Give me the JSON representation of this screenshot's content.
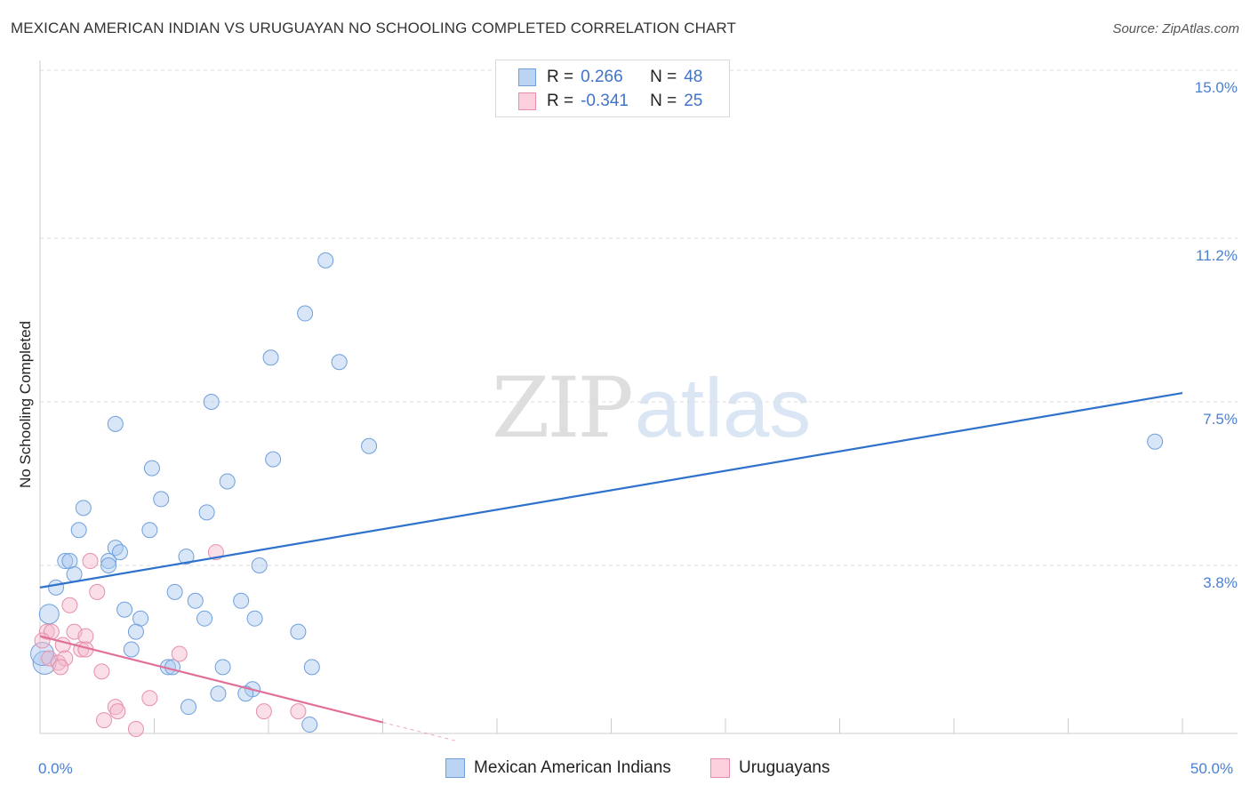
{
  "title": "MEXICAN AMERICAN INDIAN VS URUGUAYAN NO SCHOOLING COMPLETED CORRELATION CHART",
  "source": "Source: ZipAtlas.com",
  "watermark": {
    "zip": "ZIP",
    "atlas": "atlas"
  },
  "legend_stats": [
    {
      "r_label": "R =",
      "r_value": "0.266",
      "n_label": "N =",
      "n_value": "48"
    },
    {
      "r_label": "R =",
      "r_value": "-0.341",
      "n_label": "N =",
      "n_value": "25"
    }
  ],
  "chart_data": {
    "type": "scatter",
    "title": "MEXICAN AMERICAN INDIAN VS URUGUAYAN NO SCHOOLING COMPLETED CORRELATION CHART",
    "xlabel": "",
    "ylabel": "No Schooling Completed",
    "xlim": [
      0,
      50
    ],
    "ylim": [
      0,
      15.0
    ],
    "x_tick_labels": [
      {
        "value": 0,
        "label": "0.0%"
      },
      {
        "value": 50,
        "label": "50.0%"
      }
    ],
    "x_minor_ticks": [
      5,
      10,
      15,
      20,
      25,
      30,
      35,
      40,
      45,
      50
    ],
    "y_ticks": [
      {
        "value": 3.8,
        "label": "3.8%"
      },
      {
        "value": 7.5,
        "label": "7.5%"
      },
      {
        "value": 11.2,
        "label": "11.2%"
      },
      {
        "value": 15.0,
        "label": "15.0%"
      }
    ],
    "grid": true,
    "series": [
      {
        "name": "Mexican American Indians",
        "color": "#a9c8f0",
        "stroke": "#6f9fdc",
        "trend_color": "#2f72cc",
        "trend": {
          "x0": 0,
          "y0": 3.3,
          "x1": 50,
          "y1": 7.7,
          "dashed_from": null
        },
        "points": [
          [
            12.5,
            10.7
          ],
          [
            11.6,
            9.5
          ],
          [
            10.1,
            8.5
          ],
          [
            13.1,
            8.4
          ],
          [
            7.5,
            7.5
          ],
          [
            3.3,
            7.0
          ],
          [
            14.4,
            6.5
          ],
          [
            10.2,
            6.2
          ],
          [
            4.9,
            6.0
          ],
          [
            8.2,
            5.7
          ],
          [
            5.3,
            5.3
          ],
          [
            1.9,
            5.1
          ],
          [
            7.3,
            5.0
          ],
          [
            1.7,
            4.6
          ],
          [
            4.8,
            4.6
          ],
          [
            3.3,
            4.2
          ],
          [
            3.5,
            4.1
          ],
          [
            6.4,
            4.0
          ],
          [
            1.1,
            3.9
          ],
          [
            1.3,
            3.9
          ],
          [
            3.0,
            3.9
          ],
          [
            3.0,
            3.8
          ],
          [
            9.6,
            3.8
          ],
          [
            1.5,
            3.6
          ],
          [
            0.7,
            3.3
          ],
          [
            5.9,
            3.2
          ],
          [
            6.8,
            3.0
          ],
          [
            8.8,
            3.0
          ],
          [
            3.7,
            2.8
          ],
          [
            0.4,
            2.7
          ],
          [
            4.4,
            2.6
          ],
          [
            7.2,
            2.6
          ],
          [
            9.4,
            2.6
          ],
          [
            4.2,
            2.3
          ],
          [
            11.3,
            2.3
          ],
          [
            4.0,
            1.9
          ],
          [
            0.2,
            1.6
          ],
          [
            5.6,
            1.5
          ],
          [
            5.8,
            1.5
          ],
          [
            8.0,
            1.5
          ],
          [
            11.9,
            1.5
          ],
          [
            9.3,
            1.0
          ],
          [
            7.8,
            0.9
          ],
          [
            9.0,
            0.9
          ],
          [
            6.5,
            0.6
          ],
          [
            11.8,
            0.2
          ],
          [
            48.8,
            6.6
          ],
          [
            0.1,
            1.8
          ]
        ]
      },
      {
        "name": "Uruguayans",
        "color": "#f5b9cb",
        "stroke": "#e68fab",
        "trend_color": "#e0709a",
        "trend": {
          "x0": 0,
          "y0": 2.2,
          "x1": 20,
          "y1": -0.4,
          "dashed_from": 15
        },
        "points": [
          [
            7.7,
            4.1
          ],
          [
            2.2,
            3.9
          ],
          [
            2.5,
            3.2
          ],
          [
            1.3,
            2.9
          ],
          [
            0.3,
            2.3
          ],
          [
            0.5,
            2.3
          ],
          [
            1.5,
            2.3
          ],
          [
            2.0,
            2.2
          ],
          [
            0.1,
            2.1
          ],
          [
            1.0,
            2.0
          ],
          [
            1.8,
            1.9
          ],
          [
            2.0,
            1.9
          ],
          [
            6.1,
            1.8
          ],
          [
            0.4,
            1.7
          ],
          [
            0.8,
            1.6
          ],
          [
            1.1,
            1.7
          ],
          [
            0.9,
            1.5
          ],
          [
            2.7,
            1.4
          ],
          [
            4.8,
            0.8
          ],
          [
            3.3,
            0.6
          ],
          [
            3.4,
            0.5
          ],
          [
            9.8,
            0.5
          ],
          [
            11.3,
            0.5
          ],
          [
            2.8,
            0.3
          ],
          [
            4.2,
            0.1
          ]
        ]
      }
    ]
  }
}
